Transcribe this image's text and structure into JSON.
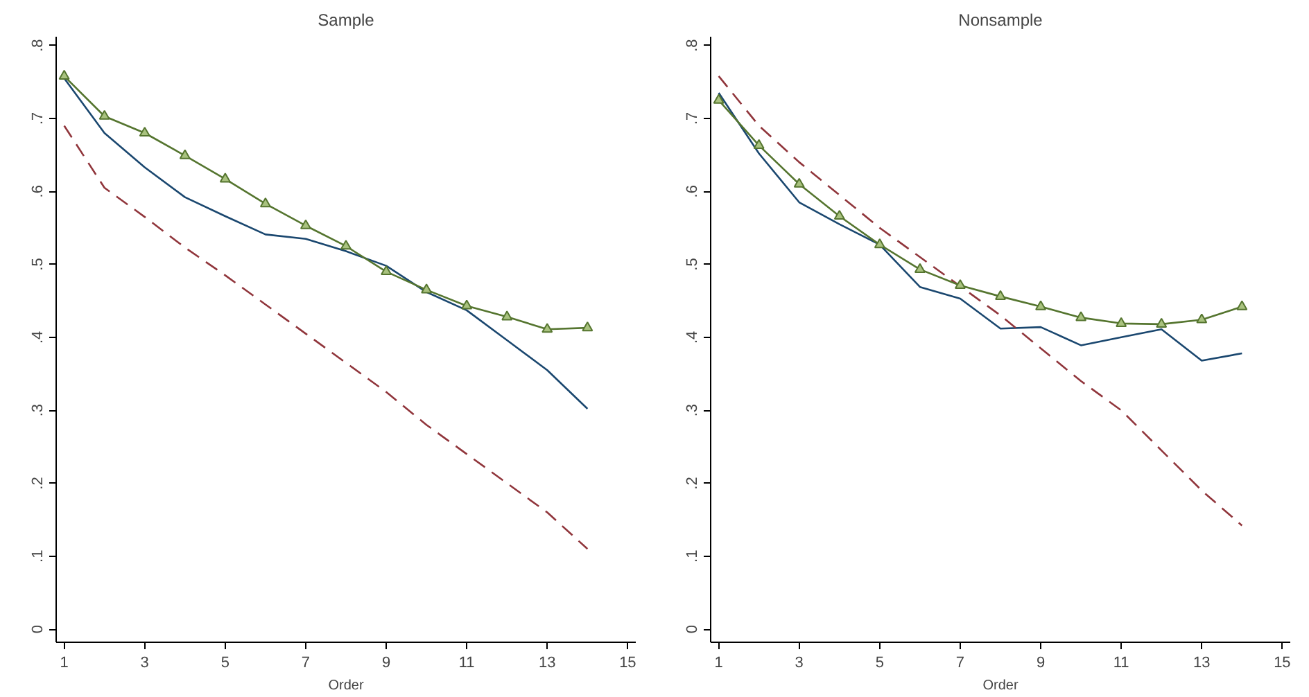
{
  "chart_data": [
    {
      "type": "line",
      "title": "Sample",
      "xlabel": "Order",
      "x": [
        1,
        2,
        3,
        4,
        5,
        6,
        7,
        8,
        9,
        10,
        11,
        12,
        13,
        14
      ],
      "xlim": [
        0.8,
        15.2
      ],
      "xticks": [
        1,
        3,
        5,
        7,
        9,
        11,
        13,
        15
      ],
      "ylim": [
        -0.018,
        0.812
      ],
      "yticks": [
        {
          "value": 0,
          "label": "0"
        },
        {
          "value": 0.1,
          "label": ".1"
        },
        {
          "value": 0.2,
          "label": ".2"
        },
        {
          "value": 0.3,
          "label": ".3"
        },
        {
          "value": 0.4,
          "label": ".4"
        },
        {
          "value": 0.5,
          "label": ".5"
        },
        {
          "value": 0.6,
          "label": ".6"
        },
        {
          "value": 0.7,
          "label": ".7"
        },
        {
          "value": 0.8,
          "label": ".8"
        }
      ],
      "grid": false,
      "series": [
        {
          "color": "#1a476f",
          "line_style": "solid",
          "marker": "none",
          "values": [
            0.755,
            0.68,
            0.633,
            0.592,
            0.566,
            0.541,
            0.535,
            0.518,
            0.498,
            0.462,
            0.437,
            0.396,
            0.355,
            0.302
          ]
        },
        {
          "color": "#90353b",
          "line_style": "dashed",
          "marker": "none",
          "values": [
            0.69,
            0.605,
            0.565,
            0.523,
            0.485,
            0.445,
            0.405,
            0.365,
            0.325,
            0.28,
            0.24,
            0.2,
            0.16,
            0.11
          ]
        },
        {
          "color": "#55752f",
          "line_style": "solid",
          "marker": "triangle",
          "values": [
            0.758,
            0.703,
            0.68,
            0.649,
            0.617,
            0.583,
            0.553,
            0.525,
            0.49,
            0.465,
            0.443,
            0.428,
            0.411,
            0.413
          ]
        }
      ]
    },
    {
      "type": "line",
      "title": "Nonsample",
      "xlabel": "Order",
      "x": [
        1,
        2,
        3,
        4,
        5,
        6,
        7,
        8,
        9,
        10,
        11,
        12,
        13,
        14
      ],
      "xlim": [
        0.8,
        15.2
      ],
      "xticks": [
        1,
        3,
        5,
        7,
        9,
        11,
        13,
        15
      ],
      "ylim": [
        -0.018,
        0.812
      ],
      "yticks": [
        {
          "value": 0,
          "label": "0"
        },
        {
          "value": 0.1,
          "label": ".1"
        },
        {
          "value": 0.2,
          "label": ".2"
        },
        {
          "value": 0.3,
          "label": ".3"
        },
        {
          "value": 0.4,
          "label": ".4"
        },
        {
          "value": 0.5,
          "label": ".5"
        },
        {
          "value": 0.6,
          "label": ".6"
        },
        {
          "value": 0.7,
          "label": ".7"
        },
        {
          "value": 0.8,
          "label": ".8"
        }
      ],
      "grid": false,
      "series": [
        {
          "color": "#1a476f",
          "line_style": "solid",
          "marker": "none",
          "values": [
            0.735,
            0.652,
            0.585,
            0.555,
            0.527,
            0.469,
            0.453,
            0.412,
            0.414,
            0.389,
            0.4,
            0.411,
            0.368,
            0.378
          ]
        },
        {
          "color": "#90353b",
          "line_style": "dashed",
          "marker": "none",
          "values": [
            0.758,
            0.69,
            0.64,
            0.595,
            0.55,
            0.51,
            0.47,
            0.43,
            0.385,
            0.34,
            0.3,
            0.245,
            0.19,
            0.142
          ]
        },
        {
          "color": "#55752f",
          "line_style": "solid",
          "marker": "triangle",
          "values": [
            0.725,
            0.663,
            0.61,
            0.566,
            0.527,
            0.493,
            0.471,
            0.456,
            0.442,
            0.427,
            0.419,
            0.418,
            0.424,
            0.442
          ]
        }
      ]
    }
  ]
}
